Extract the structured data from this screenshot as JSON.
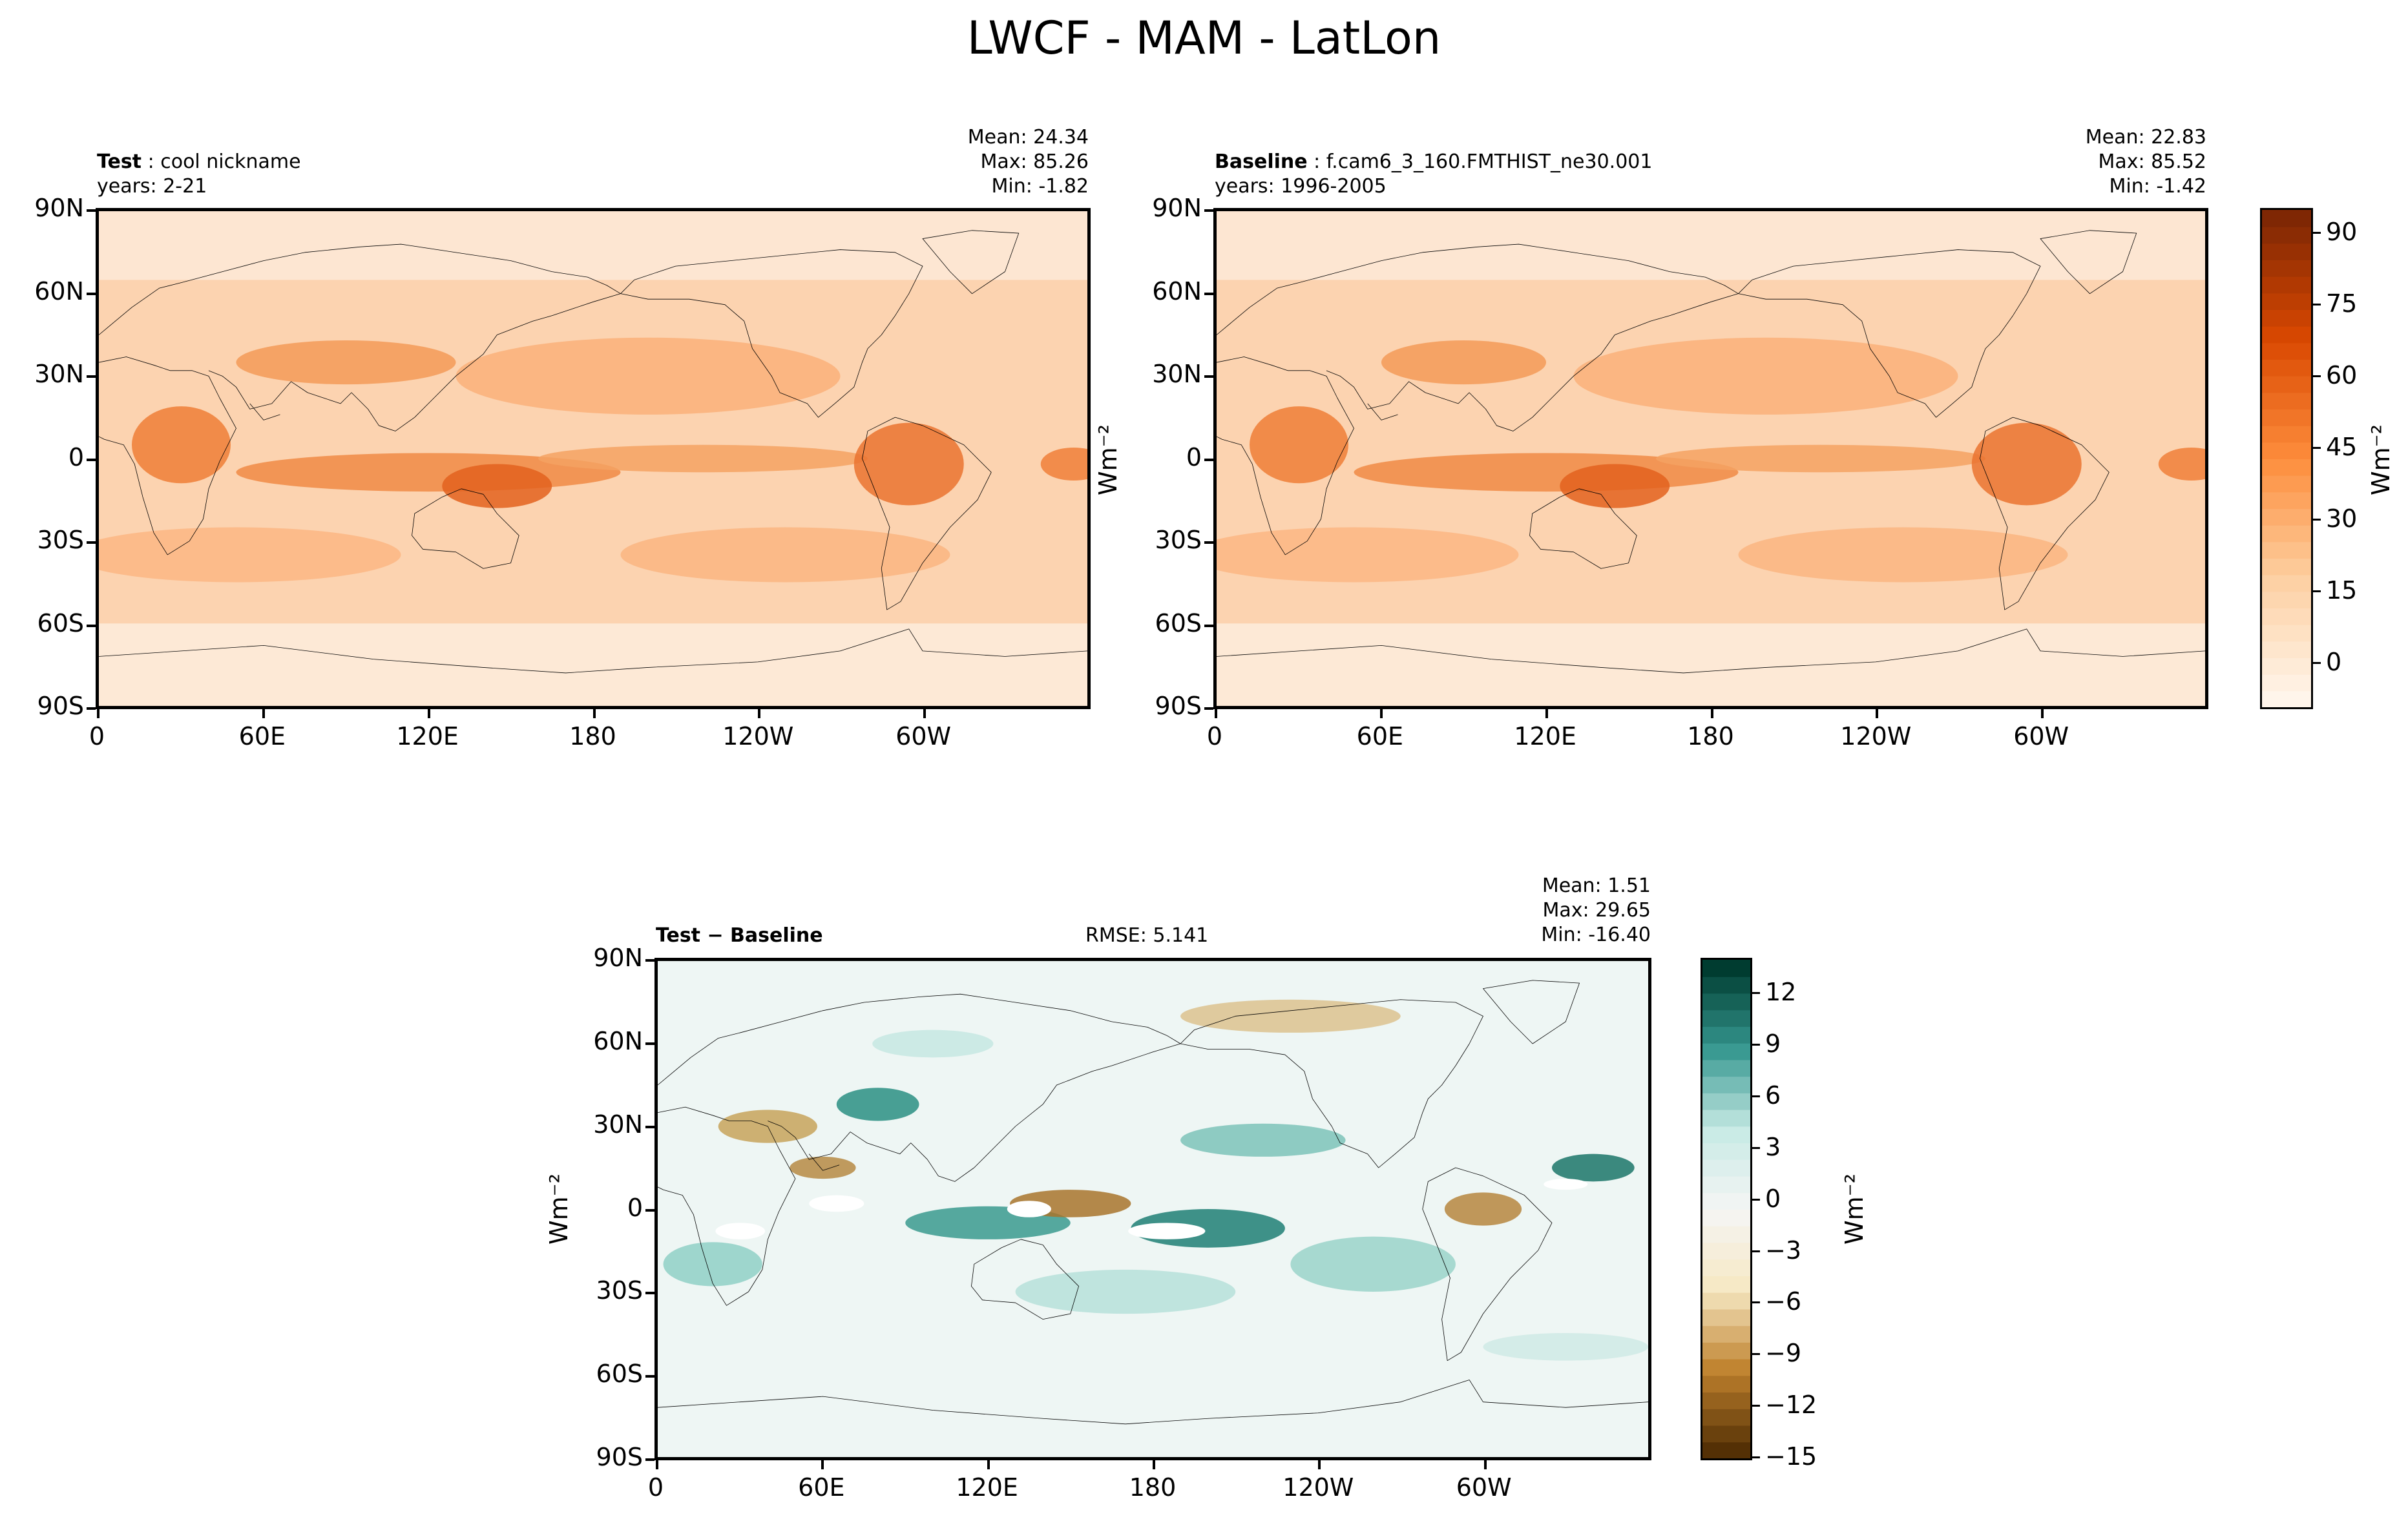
{
  "figure_title": "LWCF - MAM - LatLon",
  "lat_ticks": [
    "90N",
    "60N",
    "30N",
    "0",
    "30S",
    "60S",
    "90S"
  ],
  "lon_ticks": [
    "0",
    "60E",
    "120E",
    "180",
    "120W",
    "60W"
  ],
  "units_label": "Wm⁻²",
  "panels": {
    "test": {
      "label": "Test",
      "name": "cool nickname",
      "years": "years: 2-21",
      "mean": "Mean: 24.34",
      "max": "Max: 85.26",
      "min": "Min: -1.82"
    },
    "baseline": {
      "label": "Baseline",
      "name": "f.cam6_3_160.FMTHIST_ne30.001",
      "years": "years: 1996-2005",
      "mean": "Mean: 22.83",
      "max": "Max: 85.52",
      "min": "Min: -1.42"
    },
    "diff": {
      "label": "Test − Baseline",
      "rmse": "RMSE: 5.141",
      "mean": "Mean:  1.51",
      "max": "Max: 29.65",
      "min": "Min: -16.40"
    }
  },
  "colorbars": {
    "fields": {
      "colormap": "Oranges",
      "ticks": [
        "90",
        "75",
        "60",
        "45",
        "30",
        "15",
        "0"
      ],
      "range": [
        -9,
        95
      ]
    },
    "diff": {
      "colormap": "BrBG",
      "ticks": [
        "12",
        "9",
        "6",
        "3",
        "0",
        "−3",
        "−6",
        "−9",
        "−12",
        "−15"
      ],
      "range": [
        -15,
        14
      ]
    }
  },
  "colors": {
    "orange_dark": "#7f2704",
    "orange_light": "#fff5eb",
    "teal_dark": "#003c30",
    "brown_dark": "#543005"
  },
  "chart_data": [
    {
      "type": "heatmap",
      "title": "Test : cool nickname",
      "projection": "PlateCarree",
      "xlabel": "",
      "ylabel": "",
      "xlim": [
        0,
        360
      ],
      "ylim": [
        -90,
        90
      ],
      "stats": {
        "mean": 24.34,
        "max": 85.26,
        "min": -1.82
      }
    },
    {
      "type": "heatmap",
      "title": "Baseline : f.cam6_3_160.FMTHIST_ne30.001",
      "projection": "PlateCarree",
      "xlim": [
        0,
        360
      ],
      "ylim": [
        -90,
        90
      ],
      "stats": {
        "mean": 22.83,
        "max": 85.52,
        "min": -1.42
      }
    },
    {
      "type": "heatmap",
      "title": "Test − Baseline",
      "projection": "PlateCarree",
      "xlim": [
        0,
        360
      ],
      "ylim": [
        -90,
        90
      ],
      "stats": {
        "mean": 1.51,
        "max": 29.65,
        "min": -16.4,
        "rmse": 5.141
      }
    }
  ]
}
